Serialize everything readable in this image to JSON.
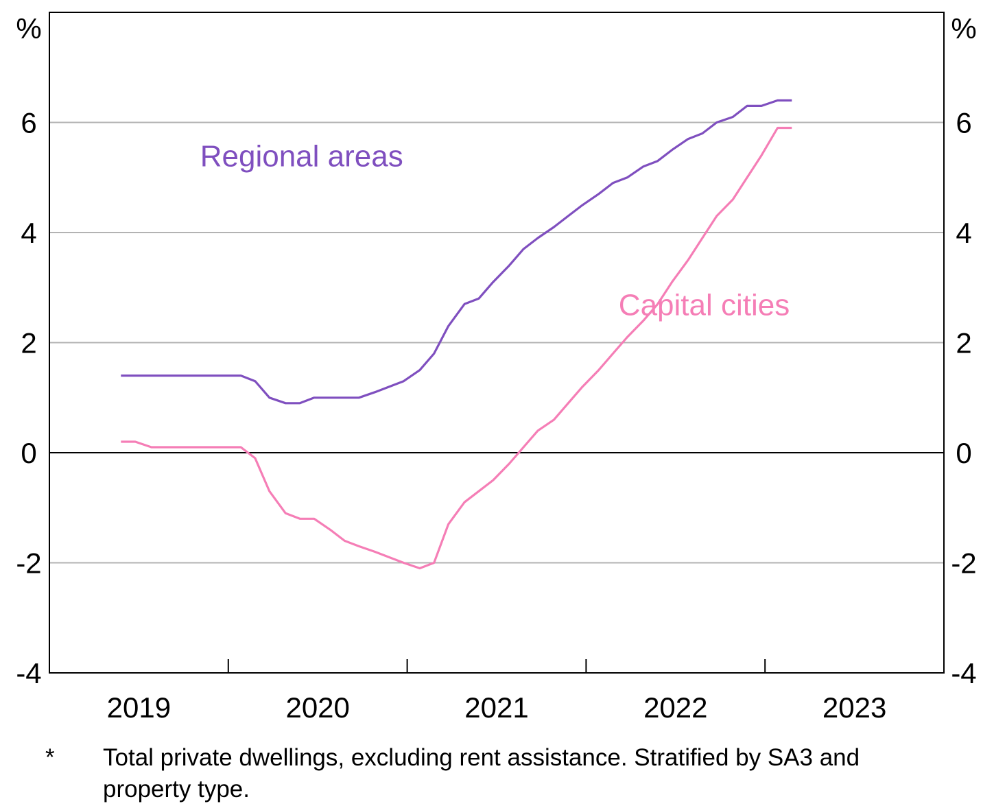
{
  "chart_data": {
    "type": "line",
    "unit_left": "%",
    "unit_right": "%",
    "yticks": [
      6,
      4,
      2,
      0,
      -2,
      -4
    ],
    "ytick_labels": [
      "6",
      "4",
      "2",
      "0",
      "-2",
      "-4"
    ],
    "ylim": [
      -4,
      8
    ],
    "xlim": [
      2018.45,
      2023.45
    ],
    "year_labels": [
      "2019",
      "2020",
      "2021",
      "2022",
      "2023"
    ],
    "year_boundaries": [
      2019.45,
      2020.45,
      2021.45,
      2022.45
    ],
    "grid": true,
    "series": [
      {
        "name": "Regional areas",
        "color": "#7f4fbf",
        "x": [
          2018.85,
          2018.93,
          2019.02,
          2019.1,
          2019.18,
          2019.27,
          2019.35,
          2019.43,
          2019.52,
          2019.6,
          2019.68,
          2019.77,
          2019.85,
          2019.93,
          2020.02,
          2020.1,
          2020.18,
          2020.27,
          2020.35,
          2020.43,
          2020.52,
          2020.6,
          2020.68,
          2020.77,
          2020.85,
          2020.93,
          2021.02,
          2021.1,
          2021.18,
          2021.27,
          2021.35,
          2021.43,
          2021.52,
          2021.6,
          2021.68,
          2021.77,
          2021.85,
          2021.93,
          2022.02,
          2022.1,
          2022.18,
          2022.27,
          2022.35,
          2022.43,
          2022.52,
          2022.6
        ],
        "y": [
          1.4,
          1.4,
          1.4,
          1.4,
          1.4,
          1.4,
          1.4,
          1.4,
          1.4,
          1.3,
          1.0,
          0.9,
          0.9,
          1.0,
          1.0,
          1.0,
          1.0,
          1.1,
          1.2,
          1.3,
          1.5,
          1.8,
          2.3,
          2.7,
          2.8,
          3.1,
          3.4,
          3.7,
          3.9,
          4.1,
          4.3,
          4.5,
          4.7,
          4.9,
          5.0,
          5.2,
          5.3,
          5.5,
          5.7,
          5.8,
          6.0,
          6.1,
          6.3,
          6.3,
          6.4,
          6.4
        ]
      },
      {
        "name": "Capital cities",
        "color": "#f57eb6",
        "x": [
          2018.85,
          2018.93,
          2019.02,
          2019.1,
          2019.18,
          2019.27,
          2019.35,
          2019.43,
          2019.52,
          2019.6,
          2019.68,
          2019.77,
          2019.85,
          2019.93,
          2020.02,
          2020.1,
          2020.18,
          2020.27,
          2020.35,
          2020.43,
          2020.52,
          2020.6,
          2020.68,
          2020.77,
          2020.85,
          2020.93,
          2021.02,
          2021.1,
          2021.18,
          2021.27,
          2021.35,
          2021.43,
          2021.52,
          2021.6,
          2021.68,
          2021.77,
          2021.85,
          2021.93,
          2022.02,
          2022.1,
          2022.18,
          2022.27,
          2022.35,
          2022.43,
          2022.52,
          2022.6
        ],
        "y": [
          0.2,
          0.2,
          0.1,
          0.1,
          0.1,
          0.1,
          0.1,
          0.1,
          0.1,
          -0.1,
          -0.7,
          -1.1,
          -1.2,
          -1.2,
          -1.4,
          -1.6,
          -1.7,
          -1.8,
          -1.9,
          -2.0,
          -2.1,
          -2.0,
          -1.3,
          -0.9,
          -0.7,
          -0.5,
          -0.2,
          0.1,
          0.4,
          0.6,
          0.9,
          1.2,
          1.5,
          1.8,
          2.1,
          2.4,
          2.7,
          3.1,
          3.5,
          3.9,
          4.3,
          4.6,
          5.0,
          5.4,
          5.9,
          5.9
        ]
      }
    ],
    "series_labels": [
      {
        "text": "Regional areas",
        "x": 2019.86,
        "y": 5.2,
        "color": "#7f4fbf"
      },
      {
        "text": "Capital cities",
        "x": 2022.11,
        "y": 2.5,
        "color": "#f57eb6"
      }
    ]
  },
  "footnote": {
    "marker": "*",
    "text": "Total private dwellings, excluding rent assistance. Stratified by SA3 and property type."
  }
}
